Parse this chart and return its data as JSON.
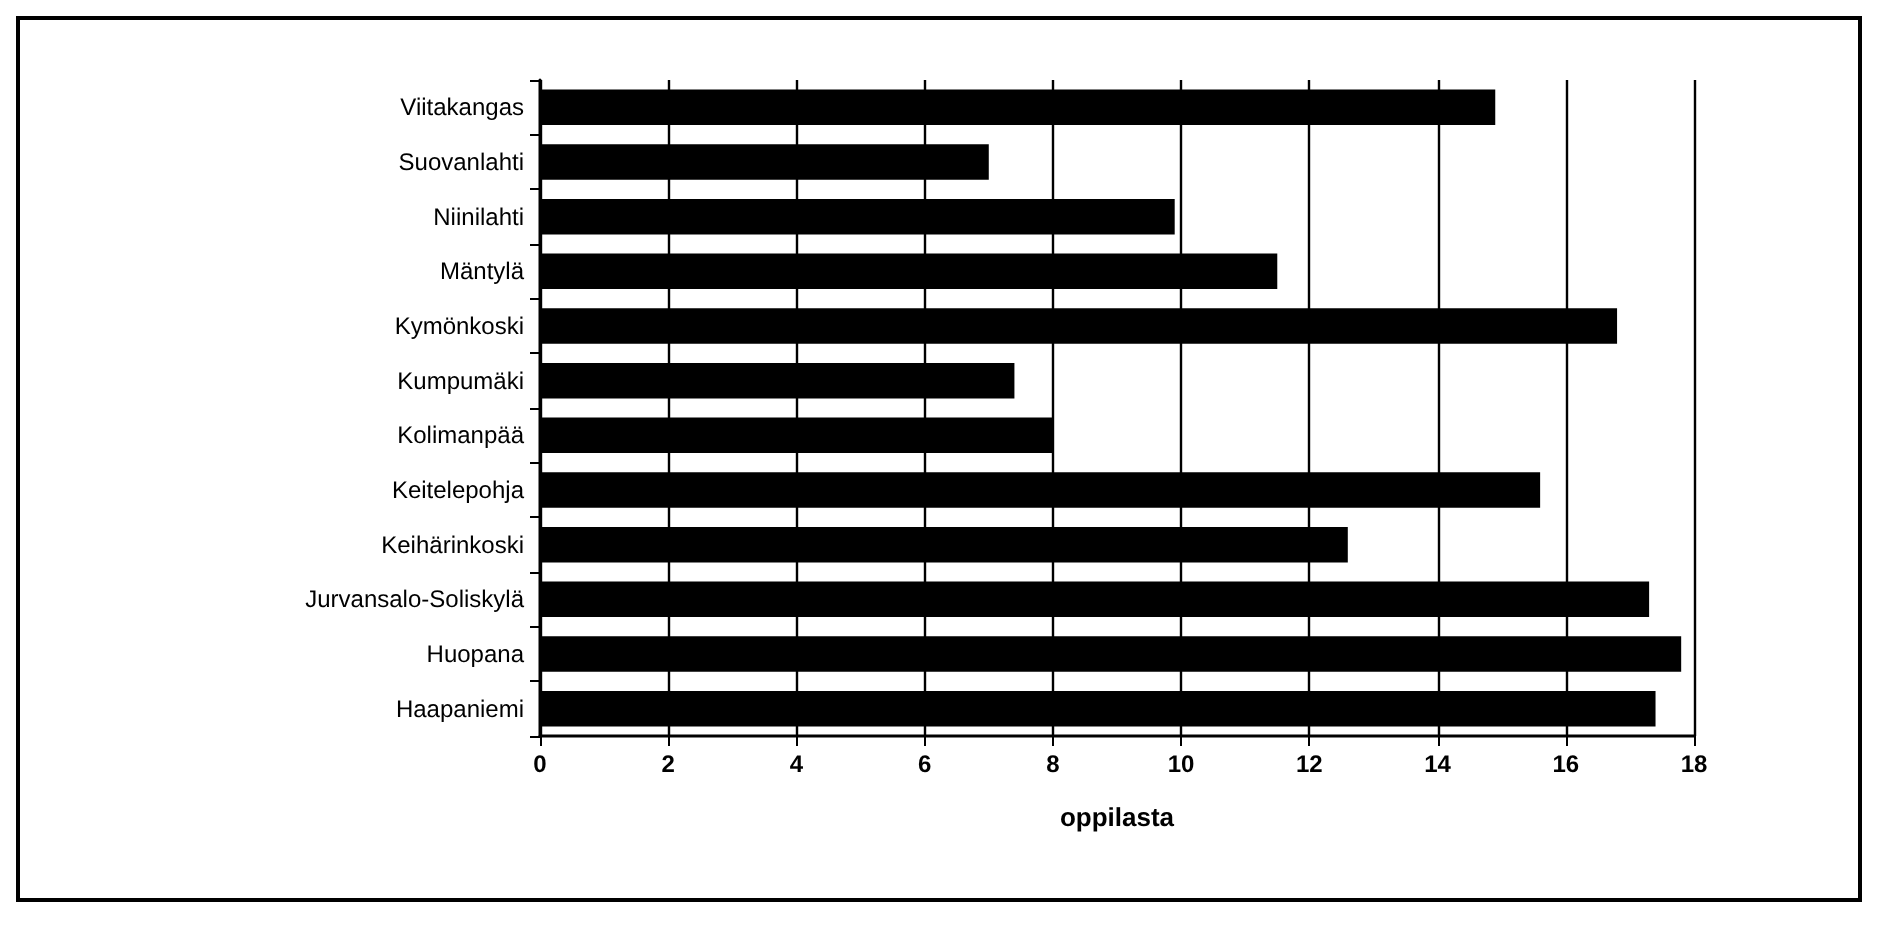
{
  "chart_data": {
    "type": "bar",
    "orientation": "horizontal",
    "xlabel": "oppilasta",
    "categories": [
      "Viitakangas",
      "Suovanlahti",
      "Niinilahti",
      "Mäntylä",
      "Kymönkoski",
      "Kumpumäki",
      "Kolimanpää",
      "Keitelepohja",
      "Keihärinkoski",
      "Jurvansalo-Soliskylä",
      "Huopana",
      "Haapaniemi"
    ],
    "values": [
      14.9,
      7,
      9.9,
      11.5,
      16.8,
      7.4,
      8,
      15.6,
      12.6,
      17.3,
      17.8,
      17.4
    ],
    "color": "#000000",
    "xlim": [
      0,
      18
    ],
    "xticks": [
      0,
      2,
      4,
      6,
      8,
      10,
      12,
      14,
      16,
      18
    ],
    "grid": "x"
  }
}
